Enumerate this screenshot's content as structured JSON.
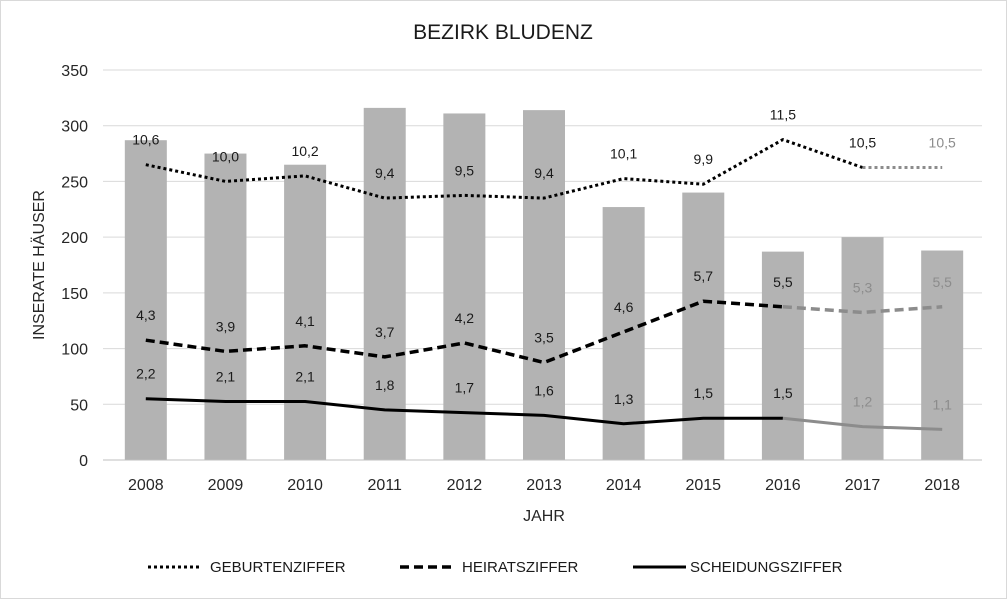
{
  "chart_data": {
    "type": "bar",
    "title": "BEZIRK BLUDENZ",
    "xlabel": "JAHR",
    "ylabel": "INSERATE HÄUSER",
    "ylim": [
      0,
      350
    ],
    "yticks": [
      0,
      50,
      100,
      150,
      200,
      250,
      300,
      350
    ],
    "grid": true,
    "legend": "bottom",
    "categories": [
      "2008",
      "2009",
      "2010",
      "2011",
      "2012",
      "2013",
      "2014",
      "2015",
      "2016",
      "2017",
      "2018"
    ],
    "bars": {
      "values": [
        287,
        275,
        265,
        316,
        311,
        314,
        227,
        240,
        187,
        200,
        188
      ]
    },
    "lines": [
      {
        "name": "GEBURTENZIFFER",
        "style": "dotted",
        "values": [
          10.6,
          10.0,
          10.2,
          9.4,
          9.5,
          9.4,
          10.1,
          9.9,
          11.5,
          10.5,
          10.5
        ],
        "gray_from": 2017
      },
      {
        "name": "HEIRATSZIFFER",
        "style": "dashed",
        "values": [
          4.3,
          3.9,
          4.1,
          3.7,
          4.2,
          3.5,
          4.6,
          5.7,
          5.5,
          5.3,
          5.5
        ],
        "gray_from": 2016
      },
      {
        "name": "SCHEIDUNGSZIFFER",
        "style": "solid",
        "values": [
          2.2,
          2.1,
          2.1,
          1.8,
          1.7,
          1.6,
          1.3,
          1.5,
          1.5,
          1.2,
          1.1
        ],
        "gray_from": 2016
      }
    ]
  },
  "colors": {
    "bars": "#b3b3b3",
    "line": "#000000",
    "line_gray": "#8c8c8c",
    "grid": "#d9d9d9",
    "axis": "#bfbfbf",
    "text": "#1a1a1a",
    "border": "#d9d9d9"
  }
}
